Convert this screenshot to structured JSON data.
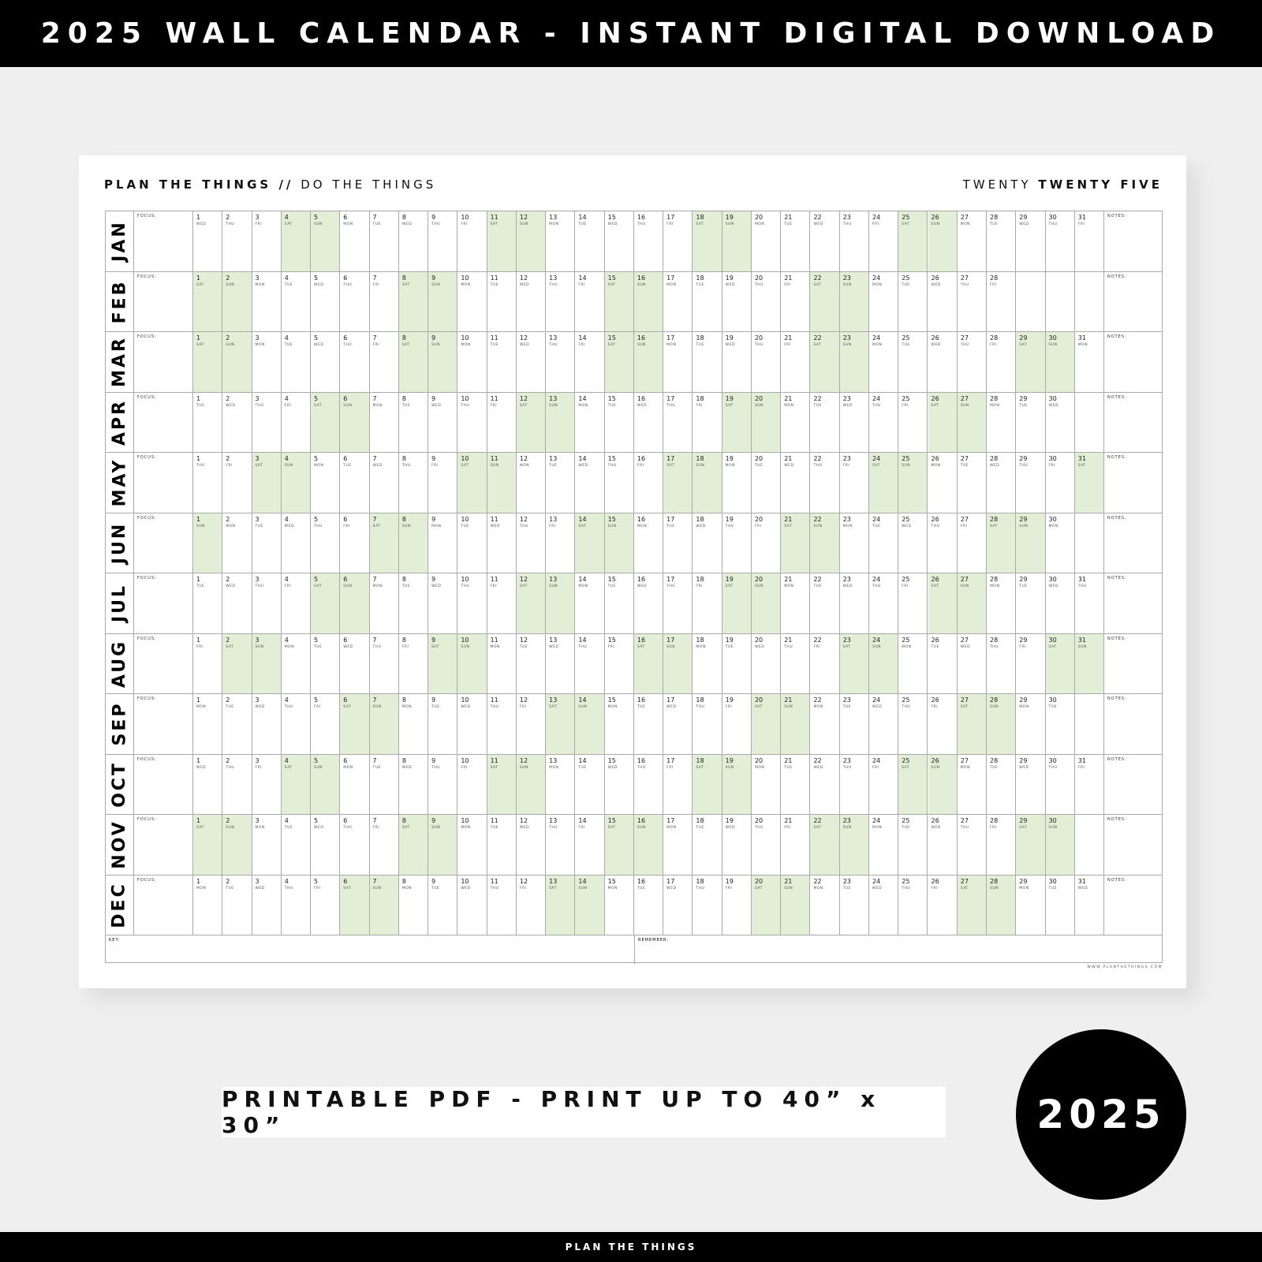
{
  "banner": {
    "title": "2025 WALL CALENDAR - INSTANT DIGITAL DOWNLOAD"
  },
  "calendar": {
    "header_left_bold": "PLAN THE THINGS //",
    "header_left": "DO THE THINGS",
    "header_right": "TWENTY",
    "header_right_bold": "TWENTY FIVE",
    "focus_label": "FOCUS:",
    "notes_label": "NOTES:",
    "key_label": "KEY:",
    "remember_label": "REMEMBER:",
    "url": "WWW.PLANTHETHINGS.COM",
    "weekend_color": "#e2eed6",
    "weekdays": [
      "MON",
      "TUE",
      "WED",
      "THU",
      "FRI",
      "SAT",
      "SUN"
    ],
    "months": [
      {
        "name": "JAN",
        "days": 31,
        "first_weekday": "WED"
      },
      {
        "name": "FEB",
        "days": 28,
        "first_weekday": "SAT"
      },
      {
        "name": "MAR",
        "days": 31,
        "first_weekday": "SAT"
      },
      {
        "name": "APR",
        "days": 30,
        "first_weekday": "TUE"
      },
      {
        "name": "MAY",
        "days": 31,
        "first_weekday": "THU"
      },
      {
        "name": "JUN",
        "days": 30,
        "first_weekday": "SUN"
      },
      {
        "name": "JUL",
        "days": 31,
        "first_weekday": "TUE"
      },
      {
        "name": "AUG",
        "days": 31,
        "first_weekday": "FRI"
      },
      {
        "name": "SEP",
        "days": 30,
        "first_weekday": "MON"
      },
      {
        "name": "OCT",
        "days": 31,
        "first_weekday": "WED"
      },
      {
        "name": "NOV",
        "days": 30,
        "first_weekday": "SAT"
      },
      {
        "name": "DEC",
        "days": 31,
        "first_weekday": "MON"
      }
    ]
  },
  "print_note": "PRINTABLE PDF - PRINT UP TO 40” x 30”",
  "badge": "2025",
  "footer": "PLAN THE THINGS"
}
